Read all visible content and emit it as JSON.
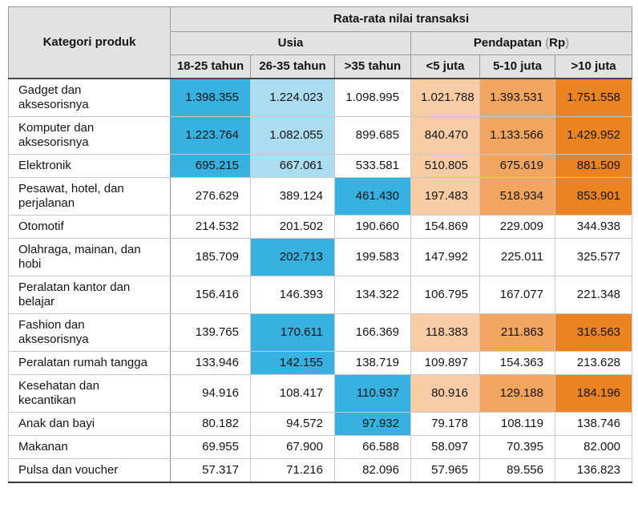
{
  "table": {
    "corner_label": "Kategori produk",
    "title": "Rata-rata nilai transaksi",
    "groups": [
      {
        "name": "Usia"
      },
      {
        "name": "Pendapatan",
        "unit_open": "(",
        "unit": "Rp",
        "unit_close": ")"
      }
    ],
    "columns": [
      "18-25 tahun",
      "26-35 tahun",
      ">35 tahun",
      "<5 juta",
      "5-10 juta",
      ">10 juta"
    ],
    "colors": {
      "header_bg": "#e2e2e2",
      "blue_strong": "#39b1e0",
      "blue_light": "#abdcf0",
      "orange_light": "#f8cda5",
      "orange_medium": "#f2a55e",
      "orange_dark": "#ea8320"
    },
    "rows": [
      {
        "category_lines": [
          "Gadget dan",
          "aksesorisnya"
        ],
        "values": [
          "1.398.355",
          "1.224.023",
          "1.098.995",
          "1.021.788",
          "1.393.531",
          "1.751.558"
        ],
        "highlights": [
          "b",
          "lb",
          "",
          "o1",
          "o2",
          "o3"
        ]
      },
      {
        "category_lines": [
          "Komputer dan",
          "aksesorisnya"
        ],
        "values": [
          "1.223.764",
          "1.082.055",
          "899.685",
          "840.470",
          "1.133.566",
          "1.429.952"
        ],
        "highlights": [
          "b",
          "lb",
          "",
          "o1",
          "o2",
          "o3"
        ]
      },
      {
        "category_lines": [
          "Elektronik"
        ],
        "values": [
          "695.215",
          "667.061",
          "533.581",
          "510.805",
          "675.619",
          "881.509"
        ],
        "highlights": [
          "b",
          "lb",
          "",
          "o1",
          "o2",
          "o3"
        ]
      },
      {
        "category_lines": [
          "Pesawat, hotel, dan",
          "perjalanan"
        ],
        "values": [
          "276.629",
          "389.124",
          "461.430",
          "197.483",
          "518.934",
          "853.901"
        ],
        "highlights": [
          "",
          "",
          "b",
          "o1",
          "o2",
          "o3"
        ]
      },
      {
        "category_lines": [
          "Otomotif"
        ],
        "values": [
          "214.532",
          "201.502",
          "190.660",
          "154.869",
          "229.009",
          "344.938"
        ],
        "highlights": [
          "",
          "",
          "",
          "",
          "",
          ""
        ]
      },
      {
        "category_lines": [
          "Olahraga, mainan, dan",
          "hobi"
        ],
        "values": [
          "185.709",
          "202.713",
          "199.583",
          "147.992",
          "225.011",
          "325.577"
        ],
        "highlights": [
          "",
          "b",
          "",
          "",
          "",
          ""
        ]
      },
      {
        "category_lines": [
          "Peralatan kantor dan",
          "belajar"
        ],
        "values": [
          "156.416",
          "146.393",
          "134.322",
          "106.795",
          "167.077",
          "221.348"
        ],
        "highlights": [
          "",
          "",
          "",
          "",
          "",
          ""
        ]
      },
      {
        "category_lines": [
          "Fashion dan",
          "aksesorisnya"
        ],
        "values": [
          "139.765",
          "170.611",
          "166.369",
          "118.383",
          "211.863",
          "316.563"
        ],
        "highlights": [
          "",
          "b",
          "",
          "o1",
          "o2",
          "o3"
        ]
      },
      {
        "category_lines": [
          "Peralatan rumah tangga"
        ],
        "values": [
          "133.946",
          "142.155",
          "138.719",
          "109.897",
          "154.363",
          "213.628"
        ],
        "highlights": [
          "",
          "b",
          "",
          "",
          "",
          ""
        ]
      },
      {
        "category_lines": [
          "Kesehatan dan",
          "kecantikan"
        ],
        "values": [
          "94.916",
          "108.417",
          "110.937",
          "80.916",
          "129.188",
          "184.196"
        ],
        "highlights": [
          "",
          "",
          "b",
          "o1",
          "o2",
          "o3"
        ]
      },
      {
        "category_lines": [
          "Anak dan bayi"
        ],
        "values": [
          "80.182",
          "94.572",
          "97.932",
          "79.178",
          "108.119",
          "138.746"
        ],
        "highlights": [
          "",
          "",
          "b",
          "",
          "",
          ""
        ]
      },
      {
        "category_lines": [
          "Makanan"
        ],
        "values": [
          "69.955",
          "67.900",
          "66.588",
          "58.097",
          "70.395",
          "82.000"
        ],
        "highlights": [
          "",
          "",
          "",
          "",
          "",
          ""
        ]
      },
      {
        "category_lines": [
          "Pulsa dan voucher"
        ],
        "values": [
          "57.317",
          "71.216",
          "82.096",
          "57.965",
          "89.556",
          "136.823"
        ],
        "highlights": [
          "",
          "",
          "",
          "",
          "",
          ""
        ]
      }
    ]
  },
  "chart_data": {
    "type": "table",
    "title": "Rata-rata nilai transaksi",
    "row_header": "Kategori produk",
    "column_groups": [
      {
        "name": "Usia",
        "columns": [
          "18-25 tahun",
          "26-35 tahun",
          ">35 tahun"
        ]
      },
      {
        "name": "Pendapatan (Rp)",
        "columns": [
          "<5 juta",
          "5-10 juta",
          ">10 juta"
        ]
      }
    ],
    "rows": [
      {
        "category": "Gadget dan aksesorisnya",
        "values": [
          1398355,
          1224023,
          1098995,
          1021788,
          1393531,
          1751558
        ]
      },
      {
        "category": "Komputer dan aksesorisnya",
        "values": [
          1223764,
          1082055,
          899685,
          840470,
          1133566,
          1429952
        ]
      },
      {
        "category": "Elektronik",
        "values": [
          695215,
          667061,
          533581,
          510805,
          675619,
          881509
        ]
      },
      {
        "category": "Pesawat, hotel, dan perjalanan",
        "values": [
          276629,
          389124,
          461430,
          197483,
          518934,
          853901
        ]
      },
      {
        "category": "Otomotif",
        "values": [
          214532,
          201502,
          190660,
          154869,
          229009,
          344938
        ]
      },
      {
        "category": "Olahraga, mainan, dan hobi",
        "values": [
          185709,
          202713,
          199583,
          147992,
          225011,
          325577
        ]
      },
      {
        "category": "Peralatan kantor dan belajar",
        "values": [
          156416,
          146393,
          134322,
          106795,
          167077,
          221348
        ]
      },
      {
        "category": "Fashion dan aksesorisnya",
        "values": [
          139765,
          170611,
          166369,
          118383,
          211863,
          316563
        ]
      },
      {
        "category": "Peralatan rumah tangga",
        "values": [
          133946,
          142155,
          138719,
          109897,
          154363,
          213628
        ]
      },
      {
        "category": "Kesehatan dan kecantikan",
        "values": [
          94916,
          108417,
          110937,
          80916,
          129188,
          184196
        ]
      },
      {
        "category": "Anak dan bayi",
        "values": [
          80182,
          94572,
          97932,
          79178,
          108119,
          138746
        ]
      },
      {
        "category": "Makanan",
        "values": [
          69955,
          67900,
          66588,
          58097,
          70395,
          82000
        ]
      },
      {
        "category": "Pulsa dan voucher",
        "values": [
          57317,
          71216,
          82096,
          57965,
          89556,
          136823
        ]
      }
    ]
  }
}
